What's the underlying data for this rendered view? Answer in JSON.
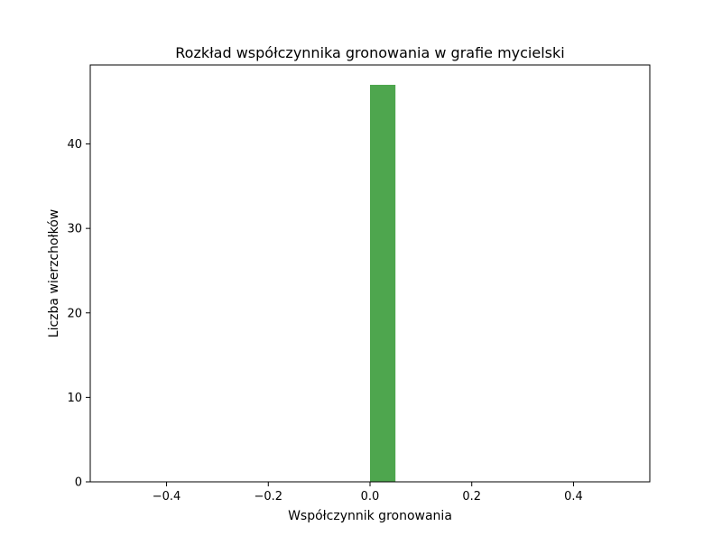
{
  "chart_data": {
    "type": "bar",
    "title": "Rozkład współczynnika gronowania w grafie mycielski",
    "xlabel": "Współczynnik gronowania",
    "ylabel": "Liczba wierzchołków",
    "xlim": [
      -0.55,
      0.55
    ],
    "ylim": [
      0,
      49.35
    ],
    "xticks": [
      -0.4,
      -0.2,
      0.0,
      0.2,
      0.4
    ],
    "xtick_labels": [
      "−0.4",
      "−0.2",
      "0.0",
      "0.2",
      "0.4"
    ],
    "yticks": [
      0,
      10,
      20,
      30,
      40
    ],
    "ytick_labels": [
      "0",
      "10",
      "20",
      "30",
      "40"
    ],
    "bins": [
      {
        "x0": 0.0,
        "x1": 0.05,
        "value": 47
      }
    ],
    "bar_color": "#4ea64e",
    "grid": false,
    "legend": false
  }
}
